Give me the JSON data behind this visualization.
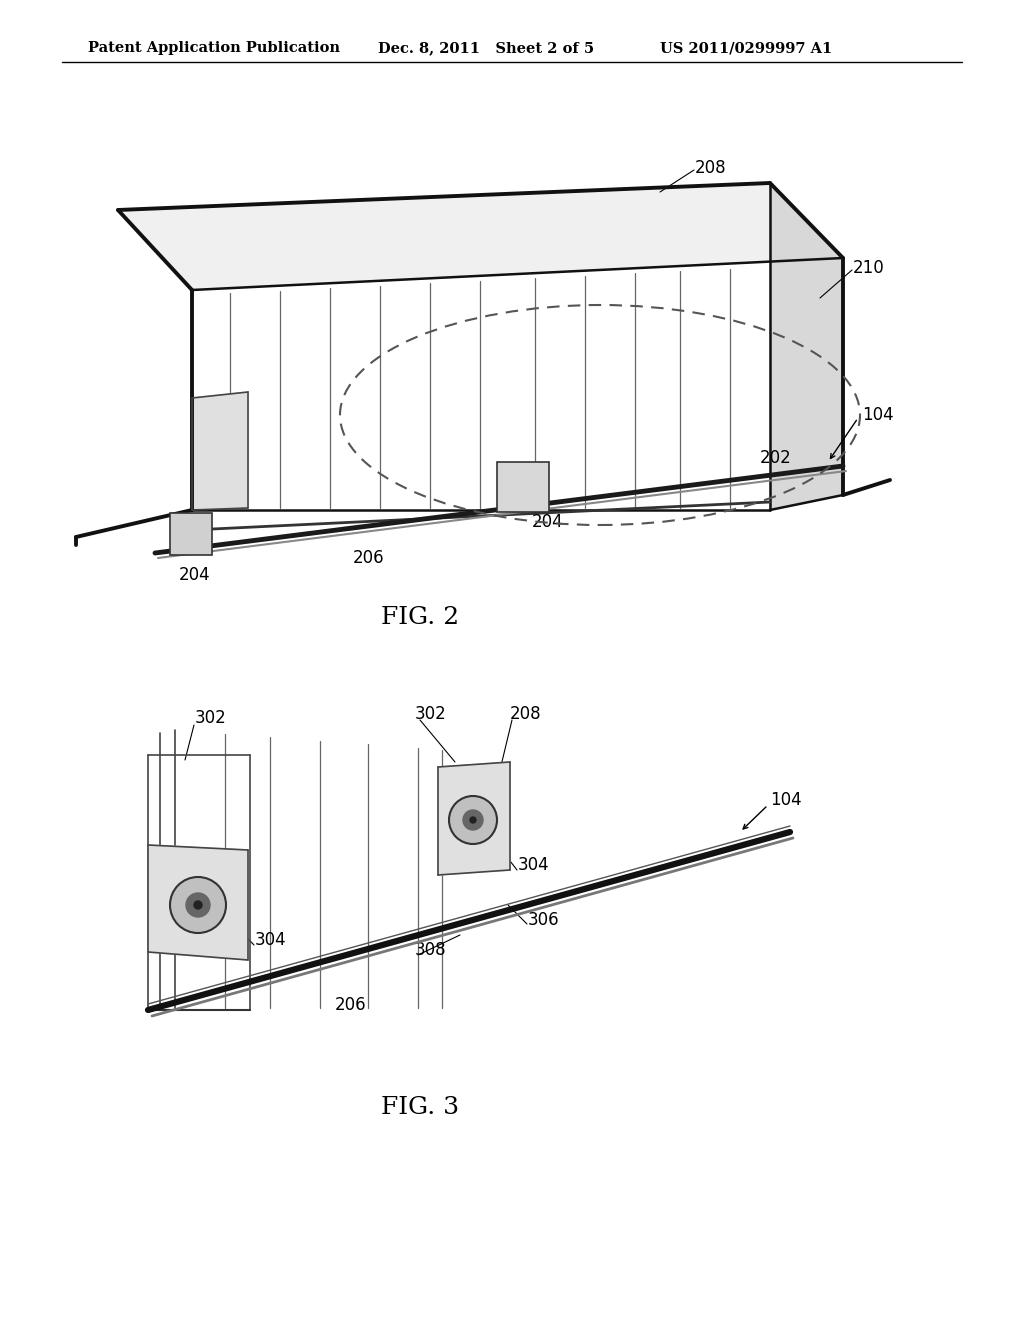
{
  "background_color": "#ffffff",
  "header_left": "Patent Application Publication",
  "header_mid": "Dec. 8, 2011   Sheet 2 of 5",
  "header_right": "US 2011/0299997 A1",
  "header_fontsize": 10.5,
  "fig2_label": "FIG. 2",
  "fig3_label": "FIG. 3",
  "label_fontsize": 18,
  "annotation_fontsize": 12,
  "line_color": "#000000",
  "dark_line_color": "#111111"
}
